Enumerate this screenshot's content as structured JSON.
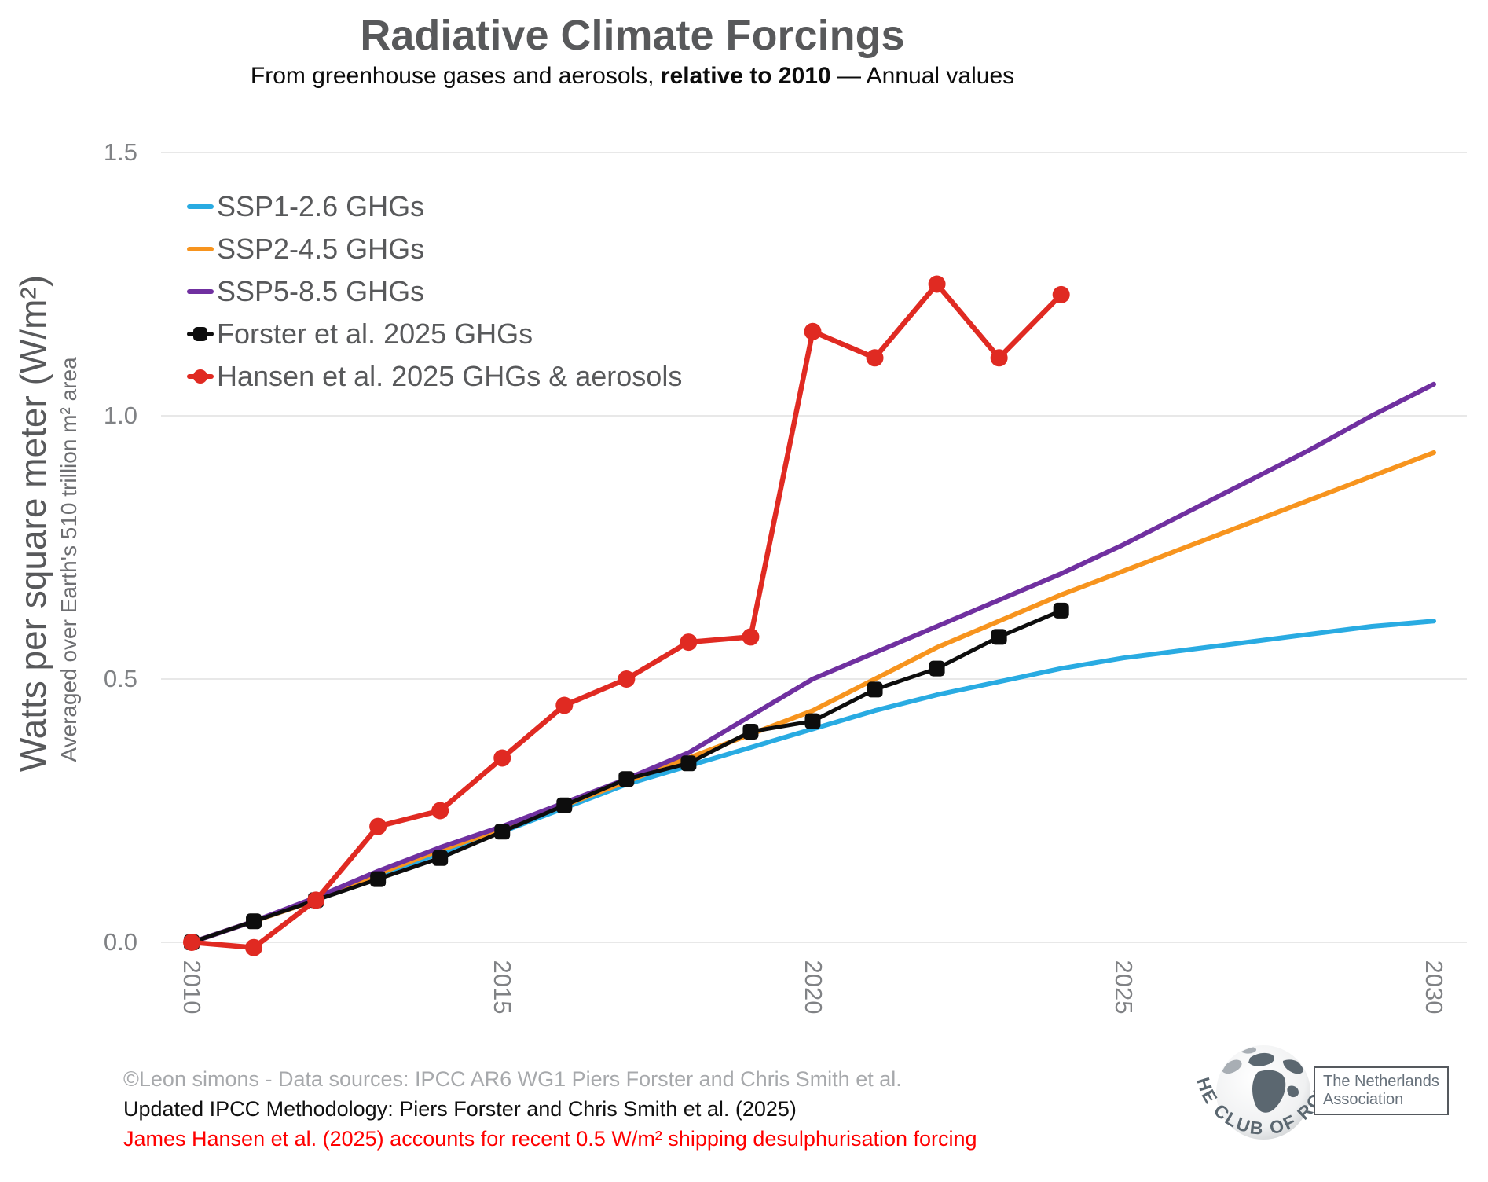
{
  "title": "Radiative Climate Forcings",
  "subtitle": {
    "pre": "From greenhouse gases and aerosols, ",
    "bold": "relative to 2010",
    "post": " — Annual values"
  },
  "y_axis": {
    "label_primary": "Watts per square meter (W/m²)",
    "label_secondary": "Averaged over Earth's 510 trillion m² area"
  },
  "footer": {
    "line1": "©Leon simons - Data sources: IPCC AR6 WG1 Piers Forster and Chris Smith et al.",
    "line2": "Updated IPCC Methodology: Piers Forster and Chris Smith et al. (2025)",
    "line3": "James Hansen et al. (2025) accounts for recent 0.5 W/m² shipping desulphurisation forcing"
  },
  "logo": {
    "arc_text": "THE CLUB OF ROME",
    "box_line1": "The Netherlands",
    "box_line2": "Association"
  },
  "chart_data": {
    "type": "line",
    "title": "Radiative Climate Forcings",
    "xlabel": "",
    "ylabel": "Watts per square meter (W/m²)",
    "xlim": [
      2010,
      2030
    ],
    "ylim": [
      -0.05,
      1.5
    ],
    "grid": "horizontal",
    "legend_position": "top-left-inside",
    "gridline_color": "#E8E8E8",
    "y_ticks": [
      {
        "label": "0.0",
        "value": 0.0
      },
      {
        "label": "0.5",
        "value": 0.5
      },
      {
        "label": "1.0",
        "value": 1.0
      },
      {
        "label": "1.5",
        "value": 1.5
      }
    ],
    "x_ticks": [
      {
        "label": "2010",
        "value": 2010
      },
      {
        "label": "2015",
        "value": 2015
      },
      {
        "label": "2020",
        "value": 2020
      },
      {
        "label": "2025",
        "value": 2025
      },
      {
        "label": "2030",
        "value": 2030
      }
    ],
    "series": [
      {
        "name": "SSP1-2.6 GHGs",
        "color": "#29ABE2",
        "marker": "none",
        "line_width": 6,
        "x_start": 2010,
        "values": [
          0.0,
          0.04,
          0.08,
          0.125,
          0.17,
          0.21,
          0.255,
          0.3,
          0.335,
          0.37,
          0.405,
          0.44,
          0.47,
          0.495,
          0.52,
          0.54,
          0.555,
          0.57,
          0.585,
          0.6,
          0.61
        ]
      },
      {
        "name": "SSP2-4.5 GHGs",
        "color": "#F7941E",
        "marker": "none",
        "line_width": 6,
        "x_start": 2010,
        "values": [
          0.0,
          0.04,
          0.08,
          0.13,
          0.175,
          0.215,
          0.26,
          0.305,
          0.35,
          0.395,
          0.44,
          0.5,
          0.56,
          0.61,
          0.66,
          0.705,
          0.75,
          0.795,
          0.84,
          0.885,
          0.93
        ]
      },
      {
        "name": "SSP5-8.5 GHGs",
        "color": "#7030A0",
        "marker": "none",
        "line_width": 6,
        "x_start": 2010,
        "values": [
          0.0,
          0.04,
          0.085,
          0.135,
          0.18,
          0.22,
          0.265,
          0.31,
          0.36,
          0.43,
          0.5,
          0.55,
          0.6,
          0.65,
          0.7,
          0.755,
          0.815,
          0.875,
          0.935,
          1.0,
          1.06
        ]
      },
      {
        "name": "Forster et al. 2025 GHGs",
        "color": "#0D0D0D",
        "marker": "square",
        "line_width": 5,
        "x_start": 2010,
        "values": [
          0.0,
          0.04,
          0.08,
          0.12,
          0.16,
          0.21,
          0.26,
          0.31,
          0.34,
          0.4,
          0.42,
          0.48,
          0.52,
          0.58,
          0.63
        ]
      },
      {
        "name": "Hansen et al. 2025 GHGs & aerosols",
        "color": "#E02A22",
        "marker": "circle",
        "line_width": 6.5,
        "x_start": 2010,
        "values": [
          0.0,
          -0.01,
          0.08,
          0.22,
          0.25,
          0.35,
          0.45,
          0.5,
          0.57,
          0.58,
          1.16,
          1.11,
          1.25,
          1.11,
          1.23
        ]
      }
    ]
  }
}
